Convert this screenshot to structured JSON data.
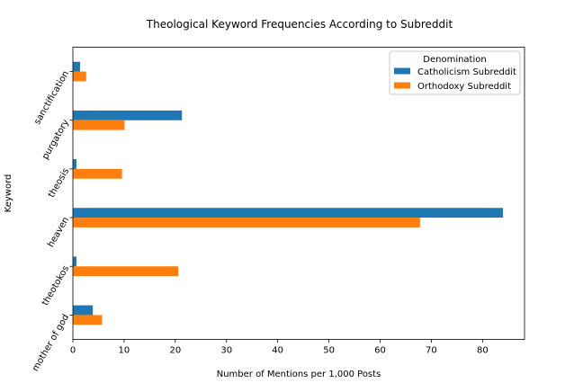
{
  "chart_data": {
    "type": "bar",
    "orientation": "horizontal",
    "title": "Theological Keyword Frequencies According to Subreddit",
    "xlabel": "Number of Mentions per 1,000 Posts",
    "ylabel": "Keyword",
    "xlim": [
      0,
      88.2
    ],
    "xticks": [
      0,
      10,
      20,
      30,
      40,
      50,
      60,
      70,
      80
    ],
    "categories": [
      "sanctification",
      "purgatory",
      "theosis",
      "heaven",
      "theotokos",
      "mother of god"
    ],
    "series": [
      {
        "name": "Catholicism Subreddit",
        "color": "#1f77b4",
        "values": [
          1.4,
          21.3,
          0.7,
          84.0,
          0.7,
          3.9
        ]
      },
      {
        "name": "Orthodoxy Subreddit",
        "color": "#ff7f0e",
        "values": [
          2.6,
          10.1,
          9.6,
          67.8,
          20.6,
          5.7
        ]
      }
    ],
    "legend": {
      "title": "Denomination",
      "position": "top-right"
    },
    "grid": false
  }
}
